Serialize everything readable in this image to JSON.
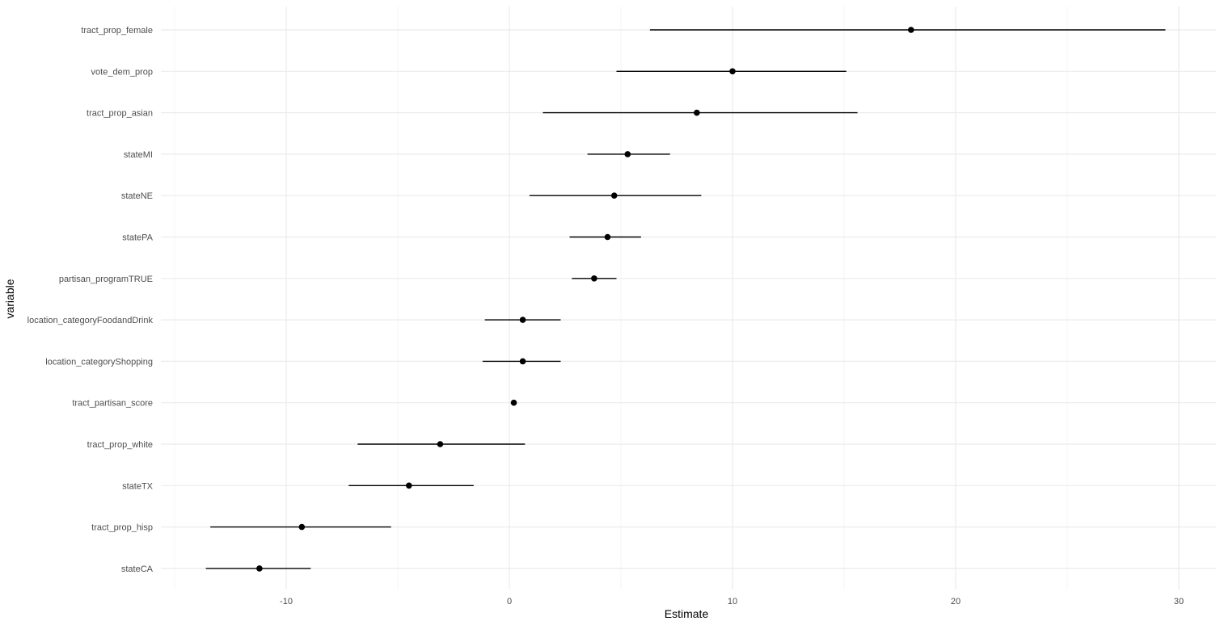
{
  "chart_data": {
    "type": "scatter",
    "subtype": "coefficient-plot-with-intervals",
    "title": "",
    "xlabel": "Estimate",
    "ylabel": "variable",
    "xlim": [
      -15.5,
      31
    ],
    "x_ticks": [
      -10,
      0,
      10,
      20,
      30
    ],
    "grid": true,
    "legend": "none",
    "categories": [
      "tract_prop_female",
      "vote_dem_prop",
      "tract_prop_asian",
      "stateMI",
      "stateNE",
      "statePA",
      "partisan_programTRUE",
      "location_categoryFoodandDrink",
      "location_categoryShopping",
      "tract_partisan_score",
      "tract_prop_white",
      "stateTX",
      "tract_prop_hisp",
      "stateCA"
    ],
    "estimates": [
      18.0,
      10.0,
      8.4,
      5.3,
      4.7,
      4.4,
      3.8,
      0.6,
      0.6,
      0.2,
      -3.1,
      -4.5,
      -9.3,
      -11.2
    ],
    "lower": [
      6.3,
      4.8,
      1.5,
      3.5,
      0.9,
      2.7,
      2.8,
      -1.1,
      -1.2,
      0.1,
      -6.8,
      -7.2,
      -13.4,
      -13.6
    ],
    "upper": [
      29.4,
      15.1,
      15.6,
      7.2,
      8.6,
      5.9,
      4.8,
      2.3,
      2.3,
      0.3,
      0.7,
      -1.6,
      -5.3,
      -8.9
    ]
  },
  "colors": {
    "point": "#000000",
    "interval": "#000000",
    "grid_major": "#ebebeb",
    "grid_minor": "#f4f4f4",
    "tick_text": "#4d4d4d"
  }
}
